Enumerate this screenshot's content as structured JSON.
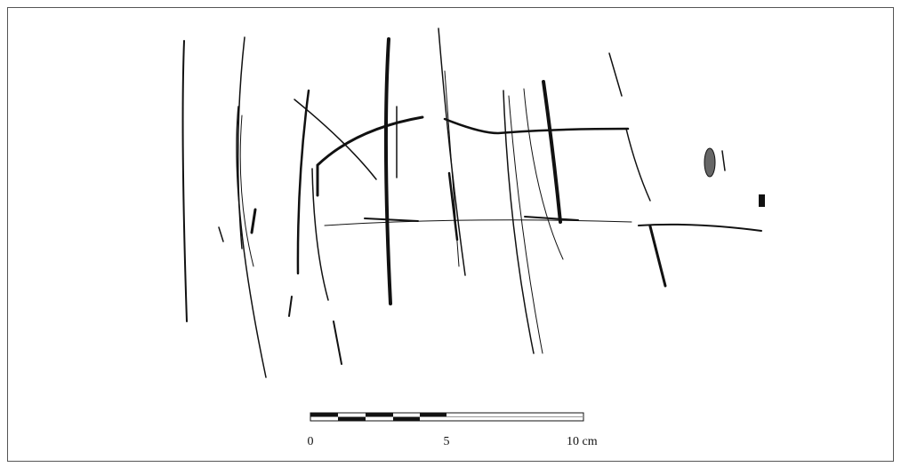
{
  "scale_bar": {
    "labels": [
      "0",
      "5",
      "10 cm"
    ]
  }
}
